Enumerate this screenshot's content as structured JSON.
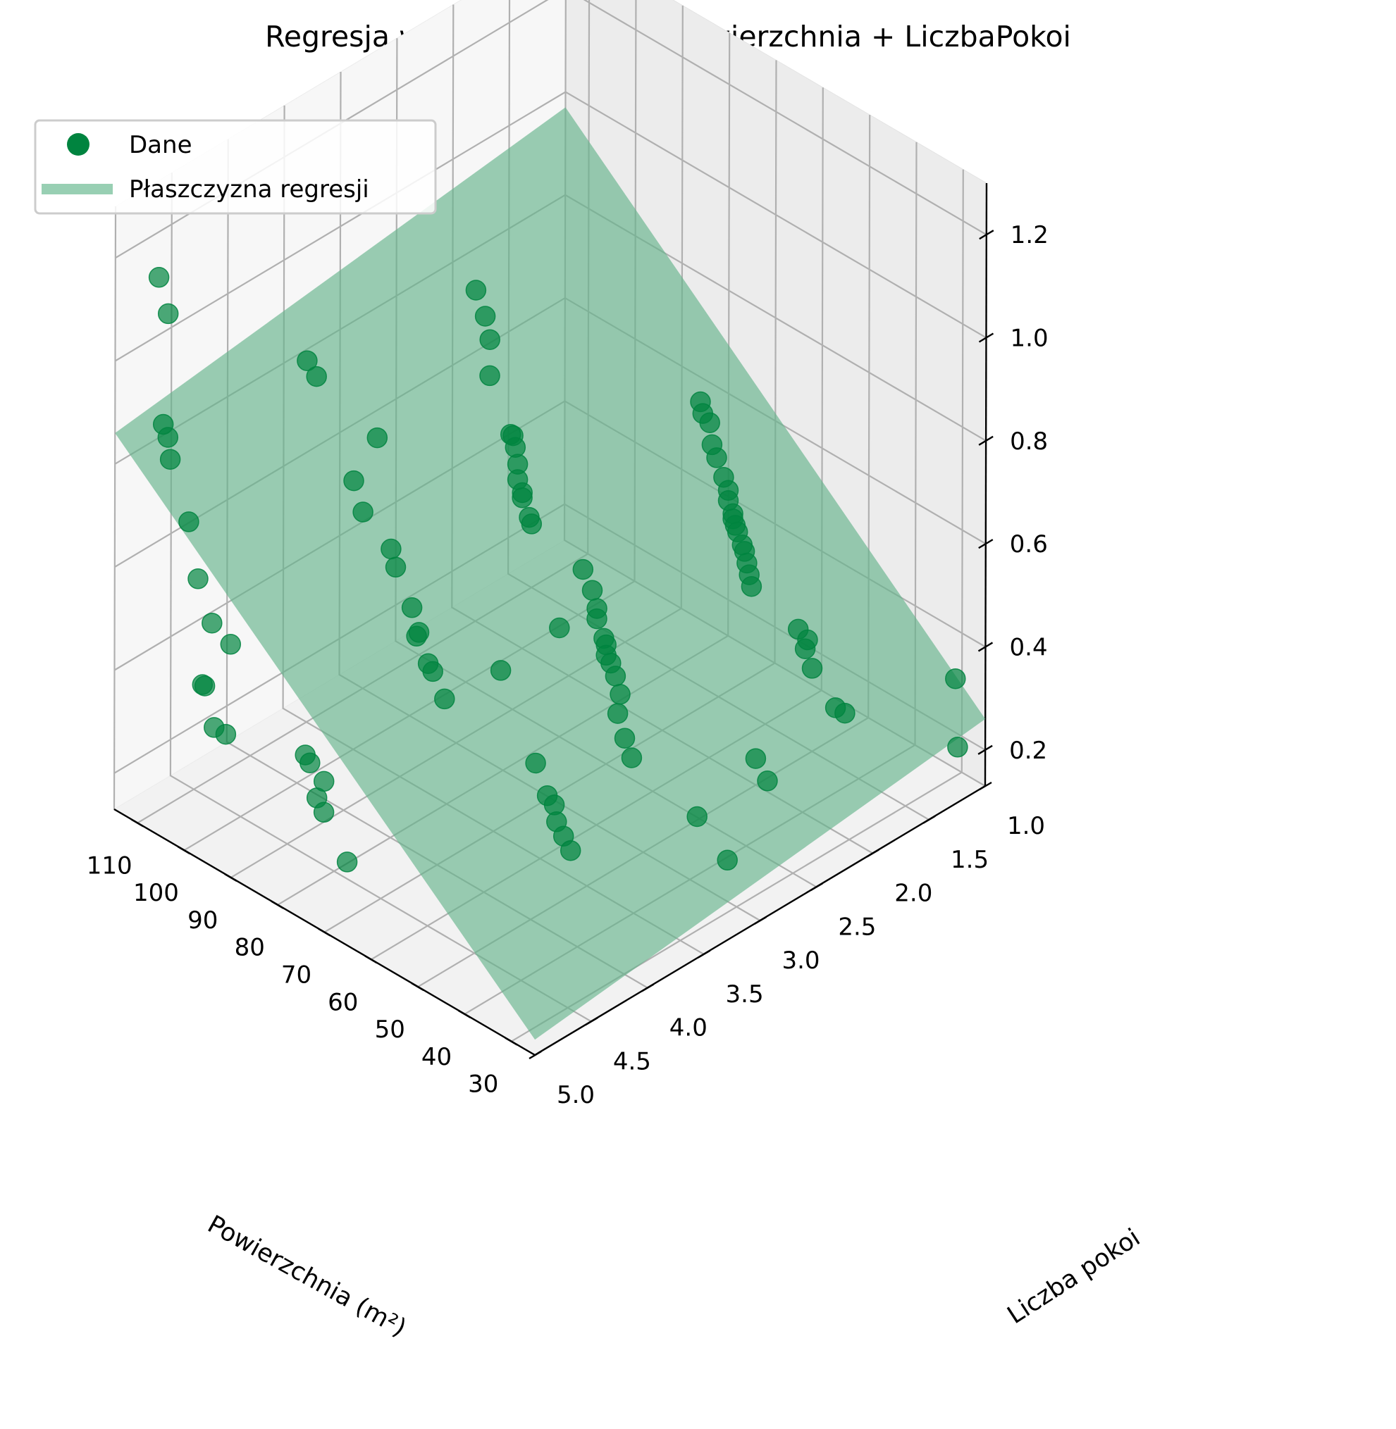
{
  "chart_data": {
    "type": "scatter",
    "title": "Regresja wieloraka: Cena ~ Powierzchnia + LiczbaPokoi",
    "xlabel": "Powierzchnia (m²)",
    "ylabel": "Liczba pokoi",
    "zlabel": "",
    "xlim": [
      25,
      115
    ],
    "ylim": [
      1,
      5
    ],
    "zlim": [
      0.13,
      1.3
    ],
    "x_ticks": [
      "110",
      "100",
      "90",
      "80",
      "70",
      "60",
      "50",
      "40",
      "30"
    ],
    "y_ticks": [
      "1.0",
      "1.5",
      "2.0",
      "2.5",
      "3.0",
      "3.5",
      "4.0",
      "4.5",
      "5.0"
    ],
    "z_ticks": [
      "0.2",
      "0.4",
      "0.6",
      "0.8",
      "1.0",
      "1.2"
    ],
    "grid": true,
    "legend": {
      "placement": "upper-left",
      "entries": [
        "Dane",
        "Płaszczyzna regresji"
      ]
    },
    "colors": {
      "points": "#00843f",
      "plane": "#66b38c",
      "legend_plane": "#98cfb3"
    },
    "regression_plane": {
      "corners": [
        {
          "x": 25,
          "y": 1,
          "z": 0.26
        },
        {
          "x": 115,
          "y": 1,
          "z": 0.97
        },
        {
          "x": 115,
          "y": 5,
          "z": 0.86
        },
        {
          "x": 25,
          "y": 5,
          "z": 0.16
        }
      ]
    },
    "series": [
      {
        "name": "Dane",
        "points": [
          [
            110.5,
            4.8,
            1.16
          ],
          [
            108.5,
            4.8,
            1.1
          ],
          [
            109.5,
            4.8,
            0.88
          ],
          [
            108.5,
            4.8,
            0.86
          ],
          [
            108.0,
            4.8,
            0.82
          ],
          [
            104.0,
            4.8,
            0.72
          ],
          [
            102.0,
            4.8,
            0.62
          ],
          [
            99.0,
            4.8,
            0.55
          ],
          [
            95.0,
            4.8,
            0.53
          ],
          [
            101.0,
            4.8,
            0.42
          ],
          [
            100.5,
            4.8,
            0.42
          ],
          [
            98.5,
            4.8,
            0.35
          ],
          [
            96.0,
            4.8,
            0.35
          ],
          [
            98.0,
            4.0,
            0.96
          ],
          [
            96.0,
            4.0,
            0.94
          ],
          [
            86.0,
            3.0,
            1.03
          ],
          [
            84.0,
            3.0,
            0.99
          ],
          [
            83.0,
            3.0,
            0.95
          ],
          [
            83.0,
            3.0,
            0.88
          ],
          [
            83.0,
            4.0,
            0.89
          ],
          [
            78.0,
            3.0,
            0.79
          ],
          [
            78.5,
            3.0,
            0.79
          ],
          [
            77.5,
            3.0,
            0.77
          ],
          [
            77.0,
            3.0,
            0.74
          ],
          [
            77.0,
            3.0,
            0.71
          ],
          [
            76.0,
            3.0,
            0.69
          ],
          [
            76.0,
            3.0,
            0.68
          ],
          [
            74.5,
            3.0,
            0.65
          ],
          [
            74.0,
            3.0,
            0.64
          ],
          [
            88.0,
            4.0,
            0.78
          ],
          [
            86.0,
            4.0,
            0.73
          ],
          [
            80.0,
            4.0,
            0.69
          ],
          [
            79.0,
            4.0,
            0.66
          ],
          [
            75.5,
            4.0,
            0.6
          ],
          [
            74.0,
            4.0,
            0.56
          ],
          [
            74.5,
            4.0,
            0.55
          ],
          [
            72.0,
            4.0,
            0.51
          ],
          [
            71.0,
            4.0,
            0.5
          ],
          [
            68.5,
            4.0,
            0.46
          ],
          [
            79.0,
            4.8,
            0.4
          ],
          [
            78.0,
            4.8,
            0.39
          ],
          [
            75.0,
            4.8,
            0.37
          ],
          [
            76.5,
            4.8,
            0.33
          ],
          [
            75.0,
            4.8,
            0.31
          ],
          [
            70.0,
            4.8,
            0.24
          ],
          [
            68.0,
            3.0,
            0.47
          ],
          [
            68.5,
            3.5,
            0.45
          ],
          [
            62.0,
            2.0,
            0.81
          ],
          [
            61.5,
            2.0,
            0.79
          ],
          [
            60.0,
            2.0,
            0.78
          ],
          [
            59.5,
            2.0,
            0.74
          ],
          [
            58.5,
            2.0,
            0.72
          ],
          [
            57.0,
            2.0,
            0.69
          ],
          [
            56.0,
            2.0,
            0.67
          ],
          [
            56.0,
            2.0,
            0.65
          ],
          [
            55.0,
            2.0,
            0.63
          ],
          [
            55.0,
            2.0,
            0.62
          ],
          [
            54.5,
            2.0,
            0.61
          ],
          [
            54.0,
            2.0,
            0.6
          ],
          [
            53.0,
            2.0,
            0.58
          ],
          [
            52.5,
            2.0,
            0.57
          ],
          [
            52.0,
            2.0,
            0.55
          ],
          [
            51.5,
            2.0,
            0.53
          ],
          [
            51.0,
            2.0,
            0.51
          ],
          [
            63.0,
            3.0,
            0.61
          ],
          [
            61.0,
            3.0,
            0.58
          ],
          [
            60.0,
            3.0,
            0.55
          ],
          [
            60.0,
            3.0,
            0.53
          ],
          [
            58.5,
            3.0,
            0.5
          ],
          [
            58.0,
            3.0,
            0.49
          ],
          [
            58.0,
            3.0,
            0.47
          ],
          [
            57.0,
            3.0,
            0.46
          ],
          [
            56.0,
            3.0,
            0.44
          ],
          [
            55.0,
            3.0,
            0.41
          ],
          [
            55.5,
            3.0,
            0.37
          ],
          [
            54.0,
            3.0,
            0.33
          ],
          [
            52.5,
            3.0,
            0.3
          ],
          [
            61.0,
            3.5,
            0.31
          ],
          [
            58.5,
            3.5,
            0.26
          ],
          [
            57.0,
            3.5,
            0.25
          ],
          [
            56.5,
            3.5,
            0.22
          ],
          [
            55.0,
            3.5,
            0.2
          ],
          [
            53.5,
            3.5,
            0.18
          ],
          [
            41.0,
            2.0,
            0.48
          ],
          [
            39.5,
            2.0,
            0.45
          ],
          [
            39.0,
            2.0,
            0.47
          ],
          [
            38.0,
            2.0,
            0.42
          ],
          [
            33.0,
            2.0,
            0.37
          ],
          [
            31.0,
            2.0,
            0.37
          ],
          [
            38.0,
            2.5,
            0.31
          ],
          [
            35.5,
            2.5,
            0.28
          ],
          [
            38.5,
            3.0,
            0.26
          ],
          [
            32.0,
            3.0,
            0.21
          ],
          [
            29.0,
            1.1,
            0.33
          ],
          [
            28.5,
            1.1,
            0.2
          ]
        ]
      }
    ]
  }
}
